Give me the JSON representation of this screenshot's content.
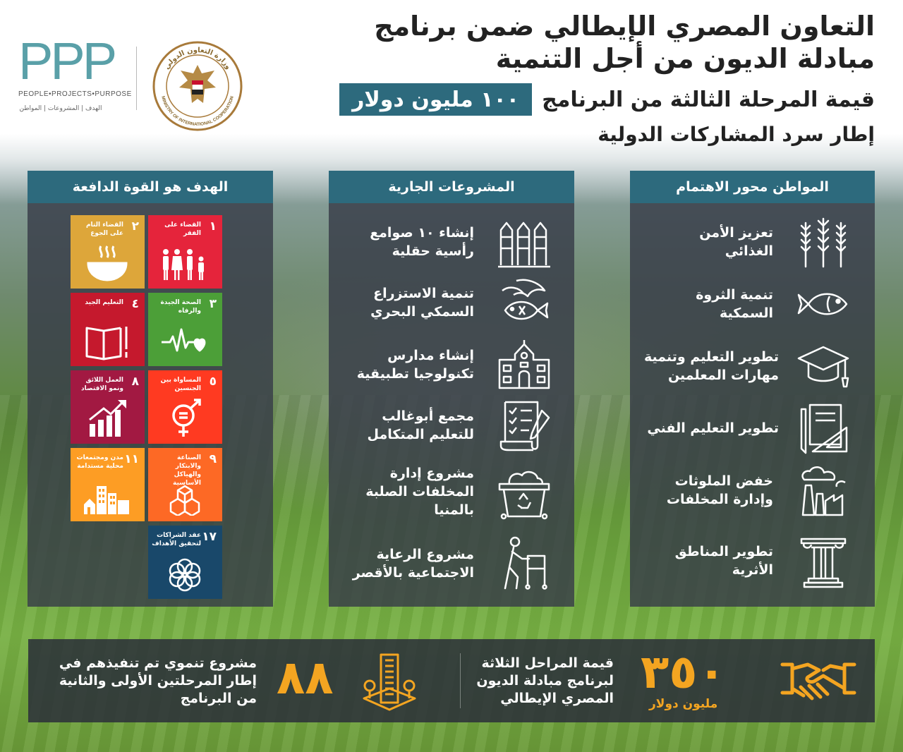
{
  "header": {
    "title_line1": "التعاون المصري الإيطالي ضمن برنامج",
    "title_line2": "مبادلة الديون من أجل التنمية",
    "amount": "١٠٠ مليون دولار",
    "subtitle": "قيمة المرحلة الثالثة من البرنامج",
    "framework": "إطار سرد المشاركات الدولية"
  },
  "logos": {
    "ppp": {
      "letters": "PPP",
      "tagline": "PEOPLE•PROJECTS•PURPOSE",
      "arabic": "الهدف | المشروعات | المواطن"
    },
    "ministry": {
      "arabic_ring": "وزارة التعاون الدولي",
      "english_ring": "MINISTRY OF INTERNATIONAL COOPERATION"
    }
  },
  "citizen_panel": {
    "title": "المواطن محور الاهتمام",
    "items": [
      {
        "label_l1": "تعزيز الأمن",
        "label_l2": "الغذائي",
        "icon": "wheat-icon"
      },
      {
        "label_l1": "تنمية الثروة",
        "label_l2": "السمكية",
        "icon": "fish-icon"
      },
      {
        "label_l1": "تطوير التعليم وتنمية",
        "label_l2": "مهارات المعلمين",
        "icon": "graduation-cap-icon"
      },
      {
        "label_l1": "تطوير التعليم الفني",
        "label_l2": "",
        "icon": "drafting-tools-icon"
      },
      {
        "label_l1": "خفض الملوثات",
        "label_l2": "وإدارة المخلفات",
        "icon": "factory-pollution-icon"
      },
      {
        "label_l1": "تطوير المناطق",
        "label_l2": "الأثرية",
        "icon": "column-icon"
      }
    ]
  },
  "projects_panel": {
    "title": "المشروعات الجارية",
    "items": [
      {
        "label_l1": "إنشاء ١٠ صوامع",
        "label_l2": "رأسية حقلية",
        "label_l3": "",
        "icon": "silos-icon"
      },
      {
        "label_l1": "تنمية الاستزراع",
        "label_l2": "السمكي البحري",
        "label_l3": "",
        "icon": "seafood-icon"
      },
      {
        "label_l1": "إنشاء مدارس",
        "label_l2": "تكنولوجيا تطبيقية",
        "label_l3": "",
        "icon": "school-icon"
      },
      {
        "label_l1": "مجمع أبوغالب",
        "label_l2": "للتعليم المتكامل",
        "label_l3": "",
        "icon": "checklist-icon"
      },
      {
        "label_l1": "مشروع إدارة",
        "label_l2": "المخلفات الصلبة",
        "label_l3": "بالمنيا",
        "icon": "recycle-bin-icon"
      },
      {
        "label_l1": "مشروع الرعاية",
        "label_l2": "الاجتماعية بالأقصر",
        "label_l3": "",
        "icon": "elderly-walker-icon"
      }
    ]
  },
  "goals_panel": {
    "title": "الهدف هو القوة الدافعة",
    "tiles": [
      {
        "num": "١",
        "label": "القضاء على الفقر",
        "color": "#e5243b",
        "icon": "family-icon"
      },
      {
        "num": "٢",
        "label": "القضاء التام على الجوع",
        "color": "#dda63a",
        "icon": "bowl-icon"
      },
      {
        "num": "٣",
        "label": "الصحة الجيدة والرفاه",
        "color": "#4c9f38",
        "icon": "heartbeat-icon"
      },
      {
        "num": "٤",
        "label": "التعليم الجيد",
        "color": "#c5192d",
        "icon": "book-icon"
      },
      {
        "num": "٥",
        "label": "المساواة بين الجنسين",
        "color": "#ff3a21",
        "icon": "gender-equality-icon"
      },
      {
        "num": "٨",
        "label": "العمل اللائق ونمو الاقتصاد",
        "color": "#a21942",
        "icon": "growth-chart-icon"
      },
      {
        "num": "٩",
        "label": "الصناعة والابتكار والهياكل الأساسية",
        "color": "#fd6925",
        "icon": "cubes-icon"
      },
      {
        "num": "١١",
        "label": "مدن ومجتمعات محلية مستدامة",
        "color": "#fd9d24",
        "icon": "city-icon"
      },
      {
        "num": "١٧",
        "label": "عقد الشراكات لتحقيق الأهداف",
        "color": "#19486a",
        "icon": "rings-icon"
      }
    ]
  },
  "bottom": {
    "total_value": "٣٥٠",
    "total_unit": "مليون دولار",
    "total_l1": "قيمة المراحل الثلاثة",
    "total_l2": "لبرنامج مبادلة الديون",
    "total_l3": "المصري الإيطالي",
    "projects_count": "٨٨",
    "projects_l1": "مشروع تنموي تم تنفيذهم في",
    "projects_l2": "إطار المرحلتين الأولى والثانية",
    "projects_l3": "من البرنامج",
    "accent": "#f4a521"
  },
  "colors": {
    "teal": "#2d6a7d",
    "panel": "#373c48"
  }
}
